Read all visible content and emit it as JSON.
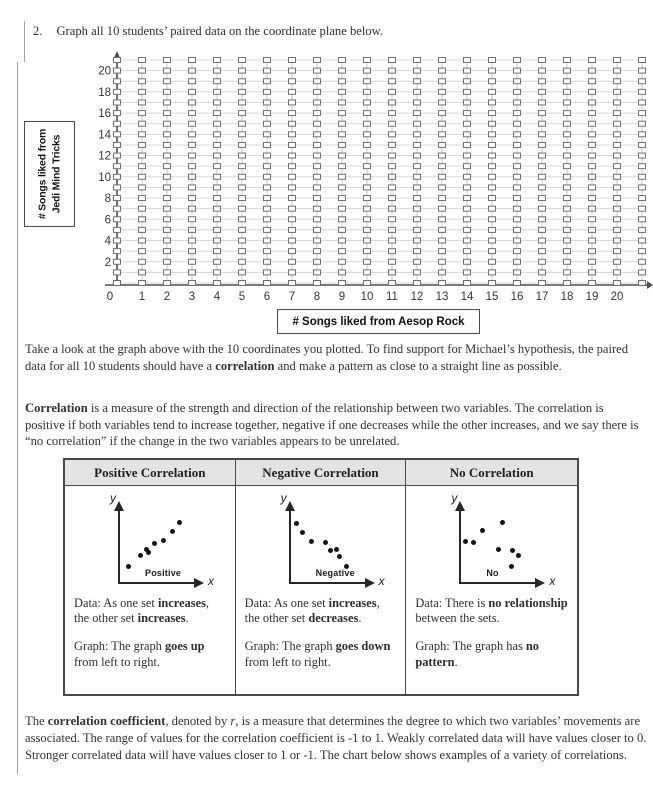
{
  "instruction": {
    "number": "2.",
    "text": "Graph all 10 students’ paired data on the coordinate plane below."
  },
  "chart_data": [
    {
      "id": "coordinate-plane",
      "type": "scatter",
      "title": "",
      "xlabel": "# Songs liked from Aesop Rock",
      "ylabel": "# Songs liked from Jedi Mind Tricks",
      "ylabel_lines": [
        "# Songs liked from",
        "Jedi Mind Tricks"
      ],
      "x_tick_labels": [
        "0",
        "1",
        "2",
        "3",
        "4",
        "5",
        "6",
        "7",
        "8",
        "9",
        "10",
        "11",
        "12",
        "13",
        "14",
        "15",
        "16",
        "17",
        "18",
        "19",
        "20"
      ],
      "y_tick_labels": [
        "20",
        "18",
        "16",
        "14",
        "12",
        "10",
        "8",
        "6",
        "4",
        "2"
      ],
      "xlim": [
        0,
        21
      ],
      "ylim": [
        0,
        21
      ],
      "grid": {
        "columns": 22,
        "rows": 22,
        "marker": "open-square",
        "gridlines": true
      },
      "points": []
    },
    {
      "id": "positive-correlation-example",
      "type": "scatter",
      "label": "Positive",
      "axis_letters": {
        "x": "x",
        "y": "y"
      },
      "points": [
        [
          0.09,
          0.17
        ],
        [
          0.28,
          0.34
        ],
        [
          0.36,
          0.43
        ],
        [
          0.4,
          0.38
        ],
        [
          0.49,
          0.53
        ],
        [
          0.63,
          0.57
        ],
        [
          0.78,
          0.71
        ],
        [
          0.88,
          0.85
        ]
      ]
    },
    {
      "id": "negative-correlation-example",
      "type": "scatter",
      "label": "Negative",
      "axis_letters": {
        "x": "x",
        "y": "y"
      },
      "points": [
        [
          0.05,
          0.83
        ],
        [
          0.14,
          0.7
        ],
        [
          0.28,
          0.56
        ],
        [
          0.5,
          0.54
        ],
        [
          0.57,
          0.41
        ],
        [
          0.67,
          0.43
        ],
        [
          0.72,
          0.32
        ],
        [
          0.82,
          0.16
        ]
      ]
    },
    {
      "id": "no-correlation-example",
      "type": "scatter",
      "label": "No",
      "axis_letters": {
        "x": "x",
        "y": "y"
      },
      "points": [
        [
          0.02,
          0.56
        ],
        [
          0.15,
          0.54
        ],
        [
          0.29,
          0.72
        ],
        [
          0.6,
          0.86
        ],
        [
          0.54,
          0.43
        ],
        [
          0.76,
          0.41
        ],
        [
          0.85,
          0.33
        ],
        [
          0.73,
          0.16
        ]
      ]
    }
  ],
  "paragraphs": {
    "p1": [
      {
        "t": "Take a look at the graph above with the 10 coordinates you plotted.  To find support for Michael’s hypothesis, the paired data for all 10 students should have a "
      },
      {
        "t": "correlation",
        "b": true
      },
      {
        "t": " and make a pattern as close to a straight line as possible."
      }
    ],
    "p2": [
      {
        "t": "Correlation",
        "b": true
      },
      {
        "t": " is a measure of the strength and direction of the relationship between two variables.  The correlation is positive if both variables tend to increase together, negative if one decreases while the other increases, and we say there is “no correlation” if the change in the two variables appears to be unrelated."
      }
    ],
    "footer": [
      {
        "t": "The "
      },
      {
        "t": "correlation coefficient",
        "b": true
      },
      {
        "t": ", denoted by "
      },
      {
        "t": "r",
        "i": true
      },
      {
        "t": ", is a measure that determines the degree to which two variables’ movements are associated.  The range of values for the correlation coefficient is -1 to 1.  Weakly correlated data will have values closer to 0.  Stronger correlated data will have values closer to 1 or -1.  The chart below shows examples of a variety of correlations."
      }
    ]
  },
  "table": {
    "headers": [
      "Positive Correlation",
      "Negative Correlation",
      "No Correlation"
    ],
    "cells": [
      {
        "data_text": [
          {
            "t": "Data: As one set "
          },
          {
            "t": "increases",
            "b": true
          },
          {
            "t": ", the other set "
          },
          {
            "t": "increases",
            "b": true
          },
          {
            "t": "."
          }
        ],
        "graph_text": [
          {
            "t": "Graph: The graph "
          },
          {
            "t": "goes up",
            "b": true
          },
          {
            "t": " from left to right."
          }
        ]
      },
      {
        "data_text": [
          {
            "t": "Data: As one set "
          },
          {
            "t": "increases",
            "b": true
          },
          {
            "t": ", the other set "
          },
          {
            "t": "decreases",
            "b": true
          },
          {
            "t": "."
          }
        ],
        "graph_text": [
          {
            "t": "Graph: The graph "
          },
          {
            "t": "goes down",
            "b": true
          },
          {
            "t": " from left to right."
          }
        ]
      },
      {
        "data_text": [
          {
            "t": "Data: There is "
          },
          {
            "t": "no relationship",
            "b": true
          },
          {
            "t": " between the sets."
          }
        ],
        "graph_text": [
          {
            "t": "Graph: The graph has "
          },
          {
            "t": "no pattern",
            "b": true
          },
          {
            "t": "."
          }
        ]
      }
    ]
  }
}
